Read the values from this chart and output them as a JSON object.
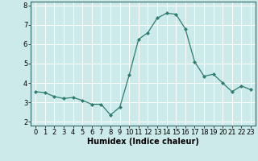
{
  "x": [
    0,
    1,
    2,
    3,
    4,
    5,
    6,
    7,
    8,
    9,
    10,
    11,
    12,
    13,
    14,
    15,
    16,
    17,
    18,
    19,
    20,
    21,
    22,
    23
  ],
  "y": [
    3.55,
    3.5,
    3.3,
    3.2,
    3.25,
    3.1,
    2.9,
    2.9,
    2.35,
    2.75,
    4.4,
    6.25,
    6.6,
    7.35,
    7.6,
    7.55,
    6.8,
    5.1,
    4.35,
    4.45,
    4.0,
    3.55,
    3.85,
    3.65
  ],
  "line_color": "#2d7d6e",
  "marker": "D",
  "marker_size": 2.0,
  "bg_color": "#cceaea",
  "grid_color": "#ffffff",
  "xlabel": "Humidex (Indice chaleur)",
  "xlabel_fontsize": 7,
  "tick_fontsize": 6,
  "ylim": [
    1.8,
    8.2
  ],
  "xlim": [
    -0.5,
    23.5
  ],
  "yticks": [
    2,
    3,
    4,
    5,
    6,
    7,
    8
  ],
  "xticks": [
    0,
    1,
    2,
    3,
    4,
    5,
    6,
    7,
    8,
    9,
    10,
    11,
    12,
    13,
    14,
    15,
    16,
    17,
    18,
    19,
    20,
    21,
    22,
    23
  ]
}
